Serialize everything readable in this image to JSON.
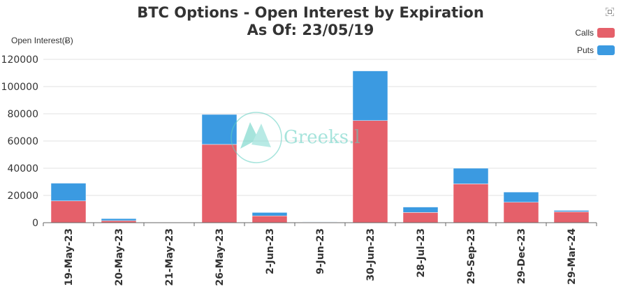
{
  "title": "BTC Options - Open Interest by Expiration",
  "subtitle": "As Of: 23/05/19",
  "watermark": "Greeks.l",
  "colors": {
    "calls": "#e5606a",
    "puts": "#3b9ae1",
    "grid": "#e0e0e0",
    "axis": "#666666"
  },
  "icons": {
    "expand": "expand-icon"
  },
  "chart_data": {
    "type": "bar",
    "stacked": true,
    "ylabel": "Open Interest(Ƀ)",
    "ylim": [
      0,
      120000
    ],
    "yticks": [
      0,
      20000,
      40000,
      60000,
      80000,
      100000,
      120000
    ],
    "grid": true,
    "legend_position": "top-right",
    "categories": [
      "19-May-23",
      "20-May-23",
      "21-May-23",
      "26-May-23",
      "2-Jun-23",
      "9-Jun-23",
      "30-Jun-23",
      "28-Jul-23",
      "29-Sep-23",
      "29-Dec-23",
      "29-Mar-24"
    ],
    "series": [
      {
        "name": "Calls",
        "color": "#e5606a",
        "values": [
          16000,
          1500,
          200,
          57500,
          5000,
          400,
          75000,
          7500,
          28500,
          15000,
          8000
        ]
      },
      {
        "name": "Puts",
        "color": "#3b9ae1",
        "values": [
          13000,
          1500,
          200,
          22000,
          2500,
          300,
          36500,
          4000,
          11500,
          7500,
          1000
        ]
      }
    ]
  }
}
